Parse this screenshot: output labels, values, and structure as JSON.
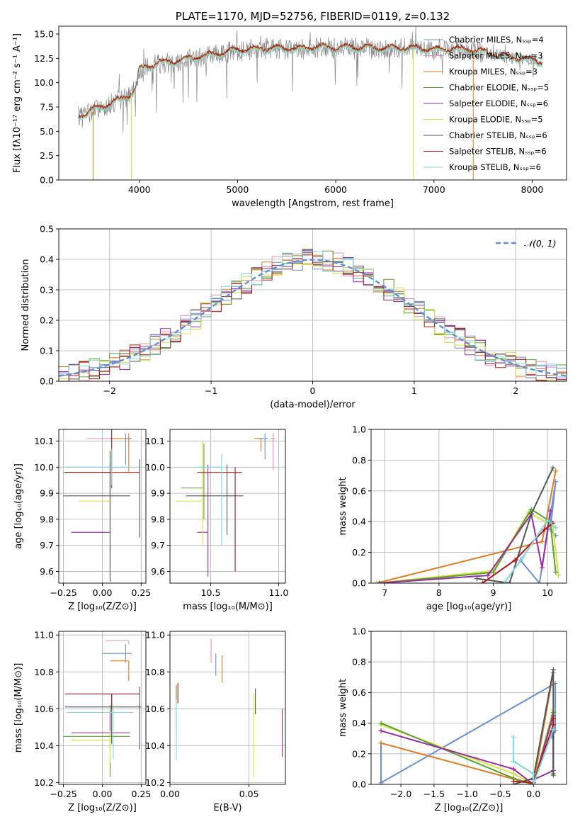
{
  "chart_data": [
    {
      "type": "line",
      "title": "PLATE=1170, MJD=52756, FIBERID=0119, z=0.132",
      "xlabel": "wavelength [Angstrom, rest frame]",
      "ylabel": "Flux [fλ10⁻¹⁷ erg cm⁻² s⁻¹ A⁻¹]",
      "xlim": [
        3180,
        8350
      ],
      "ylim": [
        0,
        15.8
      ],
      "xticks": [
        "4000",
        "5000",
        "6000",
        "7000",
        "8000"
      ],
      "yticks": [
        "0.0",
        "2.5",
        "5.0",
        "7.5",
        "10.0",
        "12.5",
        "15.0"
      ],
      "legend_placement": "right",
      "series": [
        {
          "name": "Chabrier MILES, N_SSP=4",
          "color": "#6a8fd8"
        },
        {
          "name": "Salpeter MILES, N_SSP=3",
          "color": "#f08ab8"
        },
        {
          "name": "Kroupa MILES, N_SSP=3",
          "color": "#e07a1e"
        },
        {
          "name": "Chabrier ELODIE, N_SSP=5",
          "color": "#5aa02c"
        },
        {
          "name": "Salpeter ELODIE, N_SSP=6",
          "color": "#9a2aa8"
        },
        {
          "name": "Kroupa ELODIE, N_SSP=5",
          "color": "#d8e040"
        },
        {
          "name": "Chabrier STELIB, N_SSP=6",
          "color": "#555555"
        },
        {
          "name": "Salpeter STELIB, N_SSP=6",
          "color": "#b01818"
        },
        {
          "name": "Kroupa STELIB, N_SSP=6",
          "color": "#7fd6dc"
        }
      ],
      "data_series_color": "#888888",
      "continuum": {
        "x": [
          3380,
          3500,
          3600,
          3700,
          3800,
          3900,
          3960,
          4000,
          4100,
          4200,
          4400,
          4600,
          4800,
          5000,
          5200,
          5400,
          5600,
          5800,
          6000,
          6200,
          6400,
          6600,
          6800,
          7000,
          7200,
          7400,
          7600,
          7800,
          8000,
          8100
        ],
        "y": [
          6.5,
          7.0,
          7.4,
          7.8,
          8.2,
          8.7,
          9.2,
          11.3,
          11.6,
          12.0,
          12.2,
          12.6,
          12.9,
          13.3,
          13.4,
          13.5,
          13.4,
          13.6,
          13.5,
          13.6,
          13.5,
          13.5,
          13.5,
          13.3,
          13.4,
          13.3,
          12.9,
          12.5,
          12.3,
          12.1
        ]
      }
    },
    {
      "type": "line",
      "xlabel": "(data-model)/error",
      "ylabel": "Normed distribution",
      "xlim": [
        -2.5,
        2.5
      ],
      "ylim": [
        0,
        0.5
      ],
      "xticks": [
        "−2",
        "−1",
        "0",
        "1",
        "2"
      ],
      "yticks": [
        "0.0",
        "0.1",
        "0.2",
        "0.3",
        "0.4",
        "0.5"
      ],
      "legend": "𝒩(0, 1)",
      "legend_placement": "top-right",
      "gaussian": {
        "mean": 0,
        "sigma": 1,
        "color": "#5b8fd9"
      },
      "bin_width": 0.1,
      "bins_start": -2.5
    },
    {
      "type": "scatter",
      "xlabel": "Z [log₁₀(Z/Z⊙)]",
      "ylabel": "age  [log₁₀(age/yr)]",
      "xlim": [
        -0.28,
        0.28
      ],
      "ylim": [
        9.555,
        10.145
      ],
      "xticks": [
        "−0.25",
        "0.00",
        "0.25"
      ],
      "yticks": [
        "9.6",
        "9.7",
        "9.8",
        "9.9",
        "10.0",
        "10.1"
      ],
      "points": [
        {
          "x": 0.15,
          "y": 10.11,
          "xerr": [
            0.0,
            0.04
          ],
          "yerr": [
            0.1,
            0.02
          ],
          "color": "#6a8fd8"
        },
        {
          "x": 0.05,
          "y": 10.11,
          "xerr": [
            0.15,
            0.08
          ],
          "yerr": [
            0.0,
            0.0
          ],
          "color": "#f08ab8"
        },
        {
          "x": 0.17,
          "y": 10.11,
          "xerr": [
            0.12,
            0.0
          ],
          "yerr": [
            0.13,
            0.02
          ],
          "color": "#e07a1e"
        },
        {
          "x": 0.05,
          "y": 9.98,
          "xerr": [
            0.3,
            0.0
          ],
          "yerr": [
            0.1,
            0.08
          ],
          "color": "#5aa02c"
        },
        {
          "x": 0.05,
          "y": 9.75,
          "xerr": [
            0.25,
            0.0
          ],
          "yerr": [
            0.17,
            0.27
          ],
          "color": "#9a2aa8"
        },
        {
          "x": 0.05,
          "y": 9.87,
          "xerr": [
            0.2,
            0.0
          ],
          "yerr": [
            0.25,
            0.2
          ],
          "color": "#d8e040"
        },
        {
          "x": 0.05,
          "y": 9.89,
          "xerr": [
            0.3,
            0.13
          ],
          "yerr": [
            0.33,
            0.17
          ],
          "color": "#555555"
        },
        {
          "x": 0.06,
          "y": 9.98,
          "xerr": [
            0.3,
            0.18
          ],
          "yerr": [
            0.06,
            0.38
          ],
          "color": "#b01818"
        },
        {
          "x": 0.06,
          "y": 10.0,
          "xerr": [
            0.3,
            0.14
          ],
          "yerr": [
            0.07,
            0.07
          ],
          "color": "#7fd6dc"
        },
        {
          "x": 0.24,
          "y": 9.97,
          "xerr": [
            0.0,
            0.0
          ],
          "yerr": [
            0.24,
            0.06
          ],
          "color": "#555555"
        }
      ]
    },
    {
      "type": "scatter",
      "xlabel": "mass [log₁₀(M/M⊙)]",
      "xlim": [
        10.2,
        11.05
      ],
      "ylim": [
        9.555,
        10.145
      ],
      "xticks": [
        "10.5",
        "11.0"
      ],
      "yticks": [
        "9.6",
        "9.7",
        "9.8",
        "9.9",
        "10.0",
        "10.1"
      ],
      "points": [
        {
          "x": 10.9,
          "y": 10.11,
          "xerr": [
            0.05,
            0.02
          ],
          "yerr": [
            0.08,
            0.02
          ],
          "color": "#6a8fd8"
        },
        {
          "x": 10.96,
          "y": 10.11,
          "xerr": [
            0.02,
            0.02
          ],
          "yerr": [
            0.12,
            0.02
          ],
          "color": "#f08ab8"
        },
        {
          "x": 10.87,
          "y": 10.11,
          "xerr": [
            0.05,
            0.0
          ],
          "yerr": [
            0.05,
            0.0
          ],
          "color": "#e07a1e"
        },
        {
          "x": 10.45,
          "y": 9.92,
          "xerr": [
            0.17,
            0.0
          ],
          "yerr": [
            0.12,
            0.17
          ],
          "color": "#5aa02c"
        },
        {
          "x": 10.48,
          "y": 9.75,
          "xerr": [
            0.08,
            0.0
          ],
          "yerr": [
            0.17,
            0.26
          ],
          "color": "#9a2aa8"
        },
        {
          "x": 10.44,
          "y": 9.87,
          "xerr": [
            0.2,
            0.0
          ],
          "yerr": [
            0.17,
            0.23
          ],
          "color": "#d8e040"
        },
        {
          "x": 10.62,
          "y": 9.89,
          "xerr": [
            0.3,
            0.12
          ],
          "yerr": [
            0.15,
            0.12
          ],
          "color": "#555555"
        },
        {
          "x": 10.68,
          "y": 9.98,
          "xerr": [
            0.28,
            0.05
          ],
          "yerr": [
            0.38,
            0.02
          ],
          "color": "#b01818"
        },
        {
          "x": 10.58,
          "y": 10.0,
          "xerr": [
            0.2,
            0.0
          ],
          "yerr": [
            0.3,
            0.05
          ],
          "color": "#7fd6dc"
        }
      ]
    },
    {
      "type": "line",
      "xlabel": "age  [log₁₀(age/yr)]",
      "ylabel": "mass weight",
      "xlim": [
        6.75,
        10.35
      ],
      "ylim": [
        0,
        1
      ],
      "xticks": [
        "7",
        "8",
        "9",
        "10"
      ],
      "yticks": [
        "0.0",
        "0.2",
        "0.4",
        "0.6",
        "0.8",
        "1.0"
      ],
      "series": [
        {
          "color": "#6a8fd8",
          "x": [
            9.5,
            9.85,
            10.15,
            10.05,
            10.15
          ],
          "y": [
            0.15,
            0.0,
            0.66,
            0.35,
            0.31
          ]
        },
        {
          "color": "#e07a1e",
          "x": [
            6.85,
            9.9,
            10.15
          ],
          "y": [
            0.0,
            0.27,
            0.73
          ]
        },
        {
          "color": "#d8e040",
          "x": [
            6.85,
            9.0,
            9.65,
            10.1,
            10.2
          ],
          "y": [
            0.0,
            0.08,
            0.46,
            0.37,
            0.05
          ]
        },
        {
          "color": "#5aa02c",
          "x": [
            6.9,
            9.0,
            9.7,
            10.05,
            10.15
          ],
          "y": [
            0.0,
            0.07,
            0.48,
            0.4,
            0.07
          ]
        },
        {
          "color": "#9a2aa8",
          "x": [
            6.9,
            8.9,
            9.7,
            9.9,
            10.05
          ],
          "y": [
            0.0,
            0.05,
            0.45,
            0.1,
            0.47
          ]
        },
        {
          "color": "#555555",
          "x": [
            8.7,
            9.3,
            9.7,
            10.1
          ],
          "y": [
            0.03,
            0.0,
            0.45,
            0.75
          ]
        },
        {
          "color": "#b01818",
          "x": [
            8.8,
            9.4,
            9.95,
            10.1
          ],
          "y": [
            0.0,
            0.15,
            0.35,
            0.39
          ]
        },
        {
          "color": "#7fd6dc",
          "x": [
            9.2,
            9.55,
            10.0,
            10.15
          ],
          "y": [
            0.0,
            0.17,
            0.41,
            0.36
          ]
        }
      ]
    },
    {
      "type": "scatter",
      "xlabel": "Z [log₁₀(Z/Z⊙)]",
      "ylabel": "mass [log₁₀(M/M⊙)]",
      "xlim": [
        -0.28,
        0.28
      ],
      "ylim": [
        10.19,
        11.02
      ],
      "xticks": [
        "−0.25",
        "0.00",
        "0.25"
      ],
      "yticks": [
        "10.2",
        "10.4",
        "10.6",
        "10.8",
        "11.0"
      ],
      "points": [
        {
          "x": 0.15,
          "y": 10.9,
          "xerr": [
            0.15,
            0.04
          ],
          "yerr": [
            0.05,
            0.05
          ],
          "color": "#6a8fd8"
        },
        {
          "x": 0.17,
          "y": 10.97,
          "xerr": [
            0.15,
            0.0
          ],
          "yerr": [
            0.02,
            0.0
          ],
          "color": "#f08ab8"
        },
        {
          "x": 0.17,
          "y": 10.86,
          "xerr": [
            0.12,
            0.0
          ],
          "yerr": [
            0.11,
            0.0
          ],
          "color": "#e07a1e"
        },
        {
          "x": 0.05,
          "y": 10.45,
          "xerr": [
            0.3,
            0.13
          ],
          "yerr": [
            0.22,
            0.17
          ],
          "color": "#5aa02c"
        },
        {
          "x": 0.05,
          "y": 10.47,
          "xerr": [
            0.25,
            0.13
          ],
          "yerr": [
            0.1,
            0.12
          ],
          "color": "#9a2aa8"
        },
        {
          "x": 0.05,
          "y": 10.43,
          "xerr": [
            0.25,
            0.0
          ],
          "yerr": [
            0.12,
            0.05
          ],
          "color": "#d8e040"
        },
        {
          "x": 0.06,
          "y": 10.61,
          "xerr": [
            0.3,
            0.19
          ],
          "yerr": [
            0.2,
            0.07
          ],
          "color": "#555555"
        },
        {
          "x": 0.06,
          "y": 10.68,
          "xerr": [
            0.3,
            0.18
          ],
          "yerr": [
            0.08,
            0.0
          ],
          "color": "#b01818"
        },
        {
          "x": 0.07,
          "y": 10.58,
          "xerr": [
            0.3,
            0.13
          ],
          "yerr": [
            0.25,
            0.04
          ],
          "color": "#7fd6dc"
        },
        {
          "x": 0.24,
          "y": 10.55,
          "xerr": [
            0.0,
            0.0
          ],
          "yerr": [
            0.17,
            0.17
          ],
          "color": "#555555"
        }
      ]
    },
    {
      "type": "scatter",
      "xlabel": "E(B-V)",
      "xlim": [
        0.0,
        0.073
      ],
      "ylim": [
        10.19,
        11.02
      ],
      "xticks": [
        "0.00",
        "0.05"
      ],
      "yticks": [
        "10.2",
        "10.4",
        "10.6",
        "10.8",
        "11.0"
      ],
      "points": [
        {
          "x": 0.029,
          "y": 10.85,
          "yerr": [
            0.07,
            0.05
          ],
          "color": "#6a8fd8"
        },
        {
          "x": 0.026,
          "y": 10.93,
          "yerr": [
            0.08,
            0.05
          ],
          "color": "#f08ab8"
        },
        {
          "x": 0.033,
          "y": 10.82,
          "yerr": [
            0.08,
            0.07
          ],
          "color": "#e07a1e"
        },
        {
          "x": 0.004,
          "y": 10.6,
          "yerr": [
            0.13,
            0.13
          ],
          "color": "#5aa02c"
        },
        {
          "x": 0.071,
          "y": 10.47,
          "yerr": [
            0.13,
            0.13
          ],
          "color": "#9a2aa8"
        },
        {
          "x": 0.053,
          "y": 10.45,
          "yerr": [
            0.22,
            0.23
          ],
          "color": "#d8e040"
        },
        {
          "x": 0.054,
          "y": 10.62,
          "yerr": [
            0.05,
            0.09
          ],
          "color": "#555555"
        },
        {
          "x": 0.005,
          "y": 10.68,
          "yerr": [
            0.05,
            0.06
          ],
          "color": "#b01818"
        },
        {
          "x": 0.004,
          "y": 10.45,
          "yerr": [
            0.13,
            0.2
          ],
          "color": "#7fd6dc"
        }
      ]
    },
    {
      "type": "line",
      "xlabel": "Z [log₁₀(Z/Z⊙)]",
      "ylabel": "mass weight",
      "xlim": [
        -2.45,
        0.5
      ],
      "ylim": [
        0,
        1
      ],
      "xticks": [
        "−2.0",
        "−1.5",
        "−1.0",
        "−0.5",
        "0.0"
      ],
      "yticks": [
        "0.0",
        "0.2",
        "0.4",
        "0.6",
        "0.8",
        "1.0"
      ],
      "series": [
        {
          "color": "#6a8fd8",
          "x": [
            -2.3,
            -2.3,
            0.33,
            0.33,
            0.28
          ],
          "y": [
            0.27,
            0.01,
            0.66,
            0.35,
            0.31
          ]
        },
        {
          "color": "#e07a1e",
          "x": [
            -2.3,
            0.0,
            0.3
          ],
          "y": [
            0.27,
            0.0,
            0.73
          ]
        },
        {
          "color": "#d8e040",
          "x": [
            -2.3,
            -0.3,
            0.0,
            0.3,
            0.3
          ],
          "y": [
            0.39,
            0.07,
            0.0,
            0.49,
            0.46
          ]
        },
        {
          "color": "#5aa02c",
          "x": [
            -2.3,
            -0.3,
            0.0,
            0.3,
            0.3
          ],
          "y": [
            0.4,
            0.04,
            0.0,
            0.47,
            0.07
          ]
        },
        {
          "color": "#9a2aa8",
          "x": [
            -2.3,
            -0.3,
            0.0,
            0.3,
            0.3,
            0.0
          ],
          "y": [
            0.35,
            0.1,
            0.0,
            0.45,
            0.09,
            0.03
          ]
        },
        {
          "color": "#555555",
          "x": [
            -0.3,
            0.0,
            0.3,
            0.3
          ],
          "y": [
            0.0,
            0.04,
            0.75,
            0.06
          ]
        },
        {
          "color": "#b01818",
          "x": [
            -0.3,
            0.0,
            0.3,
            0.3
          ],
          "y": [
            0.02,
            0.01,
            0.39,
            0.43
          ]
        },
        {
          "color": "#7fd6dc",
          "x": [
            -0.3,
            -0.3,
            0.0,
            0.0,
            0.3
          ],
          "y": [
            0.31,
            0.15,
            0.07,
            0.0,
            0.36
          ]
        }
      ]
    }
  ]
}
